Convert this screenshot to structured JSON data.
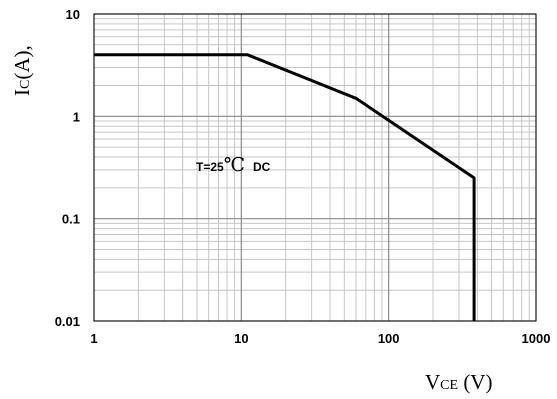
{
  "chart_data": {
    "type": "line",
    "scale": {
      "x": "log",
      "y": "log"
    },
    "xlim": [
      1,
      1000
    ],
    "ylim": [
      0.01,
      10
    ],
    "grid": true,
    "x_ticks": [
      "1",
      "10",
      "100",
      "1000"
    ],
    "y_ticks": [
      "0.01",
      "0.1",
      "1",
      "10"
    ],
    "xlabel": {
      "main": "V",
      "sub": "CE",
      "unit": " (V)"
    },
    "ylabel": {
      "main": "I",
      "sub": "C",
      "unit": "(A),"
    },
    "annotation": {
      "left": "T=25",
      "symbol": "℃",
      "right": "DC"
    },
    "series": [
      {
        "color": "#000000",
        "points": [
          {
            "x": 1,
            "y": 4
          },
          {
            "x": 11,
            "y": 4
          },
          {
            "x": 60,
            "y": 1.5
          },
          {
            "x": 380,
            "y": 0.25
          },
          {
            "x": 380,
            "y": 0.01
          }
        ]
      }
    ]
  }
}
